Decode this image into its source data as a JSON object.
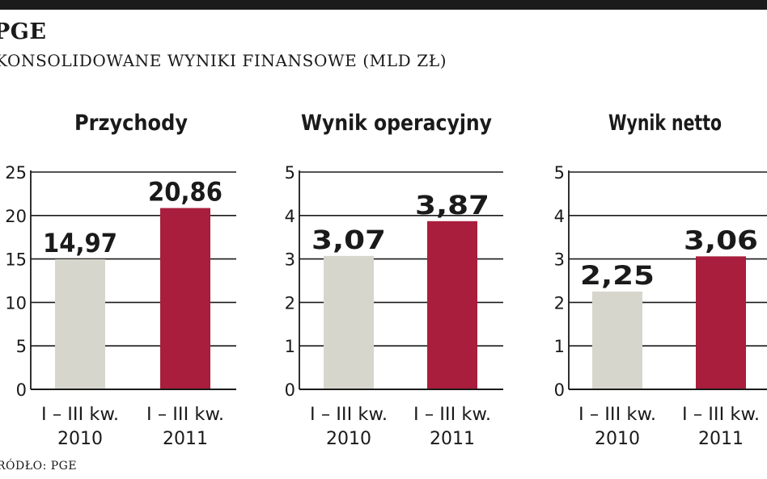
{
  "header": {
    "brand": "PGE",
    "subtitle": "KONSOLIDOWANE WYNIKI FINANSOWE (MLD ZŁ)"
  },
  "source": "RÓDŁO: PGE",
  "colors": {
    "bar_2010": "#d6d6cd",
    "bar_2011": "#a81e3c",
    "gridline": "#1a1a1a",
    "text": "#1a1a1a"
  },
  "chart_data": [
    {
      "type": "bar",
      "title": "Przychody",
      "categories": [
        [
          "I – III kw.",
          "2010"
        ],
        [
          "I – III kw.",
          "2011"
        ]
      ],
      "values": [
        14.97,
        20.86
      ],
      "labels": [
        "14,97",
        "20,86"
      ],
      "yticks": [
        0,
        5,
        10,
        15,
        20,
        25
      ],
      "ylim": [
        0,
        25
      ],
      "grid": true
    },
    {
      "type": "bar",
      "title": "Wynik operacyjny",
      "categories": [
        [
          "I – III kw.",
          "2010"
        ],
        [
          "I – III kw.",
          "2011"
        ]
      ],
      "values": [
        3.07,
        3.87
      ],
      "labels": [
        "3,07",
        "3,87"
      ],
      "yticks": [
        0,
        1,
        2,
        3,
        4,
        5
      ],
      "ylim": [
        0,
        5
      ],
      "grid": true
    },
    {
      "type": "bar",
      "title": "Wynik netto",
      "categories": [
        [
          "I – III kw.",
          "2010"
        ],
        [
          "I – III kw.",
          "2011"
        ]
      ],
      "values": [
        2.25,
        3.06
      ],
      "labels": [
        "2,25",
        "3,06"
      ],
      "yticks": [
        0,
        1,
        2,
        3,
        4,
        5
      ],
      "ylim": [
        0,
        5
      ],
      "grid": true
    }
  ]
}
